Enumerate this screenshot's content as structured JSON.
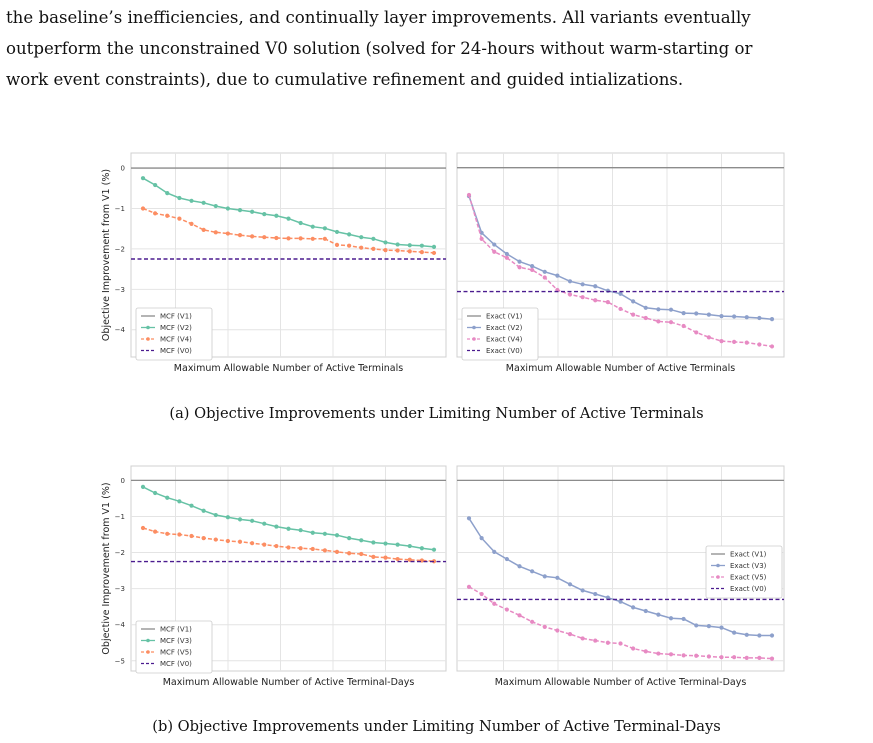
{
  "paragraph": {
    "line1": "the baseline’s inefficiencies, and continually layer improvements.  All variants eventually",
    "line2": "outperform the unconstrained V0 solution (solved for 24-hours without warm-starting or",
    "line3": "work event constraints), due to cumulative refinement and guided intializations."
  },
  "captions": {
    "a": "(a) Objective Improvements under Limiting Number of Active Terminals",
    "b": "(b) Objective Improvements under Limiting Number of Active Terminal-Days"
  },
  "colors": {
    "v1": "#8c8c8c",
    "mcf_green": "#66c2a5",
    "mcf_orange": "#fc8d62",
    "exact_blue": "#8da0cb",
    "exact_pink": "#e78ac3",
    "v0": "#4b1c8f"
  },
  "chart_data": [
    {
      "id": "a-left",
      "type": "line",
      "xlabel": "Maximum Allowable Number of Active Terminals",
      "ylabel": "Objective Improvement from V1 (%)",
      "ylim": [
        -4.6,
        0.15
      ],
      "yticks": [
        0,
        -1,
        -2,
        -3,
        -4
      ],
      "grid": true,
      "legend": "lower-left",
      "series": [
        {
          "name": "MCF (V1)",
          "style": "solid",
          "color": "#8c8c8c",
          "constant": 0
        },
        {
          "name": "MCF (V2)",
          "style": "solid",
          "marker": true,
          "color": "#66c2a5",
          "values": [
            -0.25,
            -0.42,
            -0.62,
            -0.74,
            -0.81,
            -0.86,
            -0.94,
            -1.0,
            -1.04,
            -1.08,
            -1.14,
            -1.18,
            -1.25,
            -1.36,
            -1.45,
            -1.49,
            -1.58,
            -1.64,
            -1.71,
            -1.75,
            -1.84,
            -1.89,
            -1.91,
            -1.92,
            -1.95
          ]
        },
        {
          "name": "MCF (V4)",
          "style": "dashed",
          "marker": true,
          "color": "#fc8d62",
          "values": [
            -1.0,
            -1.12,
            -1.18,
            -1.25,
            -1.38,
            -1.53,
            -1.59,
            -1.62,
            -1.66,
            -1.69,
            -1.71,
            -1.73,
            -1.74,
            -1.74,
            -1.75,
            -1.75,
            -1.9,
            -1.92,
            -1.97,
            -2.0,
            -2.03,
            -2.04,
            -2.06,
            -2.08,
            -2.1
          ]
        },
        {
          "name": "MCF (V0)",
          "style": "dashed",
          "color": "#4b1c8f",
          "constant": -2.25
        }
      ]
    },
    {
      "id": "a-right",
      "type": "line",
      "xlabel": "Maximum Allowable Number of Active Terminals",
      "ylabel": "",
      "ylim": [
        -4.92,
        0.15
      ],
      "grid": true,
      "legend": "lower-left",
      "series": [
        {
          "name": "Exact (V1)",
          "style": "solid",
          "color": "#8c8c8c",
          "constant": 0
        },
        {
          "name": "Exact (V2)",
          "style": "solid",
          "marker": true,
          "color": "#8da0cb",
          "values": [
            -0.75,
            -1.72,
            -2.03,
            -2.28,
            -2.48,
            -2.6,
            -2.75,
            -2.85,
            -3.0,
            -3.08,
            -3.13,
            -3.25,
            -3.33,
            -3.53,
            -3.7,
            -3.74,
            -3.75,
            -3.84,
            -3.85,
            -3.88,
            -3.92,
            -3.93,
            -3.95,
            -3.97,
            -4.0
          ]
        },
        {
          "name": "Exact (V4)",
          "style": "dashed",
          "marker": true,
          "color": "#e78ac3",
          "values": [
            -0.72,
            -1.88,
            -2.22,
            -2.38,
            -2.63,
            -2.7,
            -2.9,
            -3.23,
            -3.35,
            -3.42,
            -3.5,
            -3.55,
            -3.73,
            -3.88,
            -3.97,
            -4.06,
            -4.08,
            -4.18,
            -4.35,
            -4.48,
            -4.58,
            -4.6,
            -4.62,
            -4.67,
            -4.72
          ]
        },
        {
          "name": "Exact (V0)",
          "style": "dashed",
          "color": "#4b1c8f",
          "constant": -3.27
        }
      ]
    },
    {
      "id": "b-left",
      "type": "line",
      "xlabel": "Maximum Allowable Number of Active Terminal-Days",
      "ylabel": "Objective Improvement from V1 (%)",
      "ylim": [
        -5.2,
        0.15
      ],
      "yticks": [
        0,
        -1,
        -2,
        -3,
        -4,
        -5
      ],
      "grid": true,
      "legend": "lower-left",
      "series": [
        {
          "name": "MCF (V1)",
          "style": "solid",
          "color": "#8c8c8c",
          "constant": 0
        },
        {
          "name": "MCF (V3)",
          "style": "solid",
          "marker": true,
          "color": "#66c2a5",
          "values": [
            -0.18,
            -0.35,
            -0.48,
            -0.58,
            -0.7,
            -0.84,
            -0.96,
            -1.02,
            -1.08,
            -1.12,
            -1.2,
            -1.28,
            -1.34,
            -1.38,
            -1.45,
            -1.48,
            -1.52,
            -1.6,
            -1.66,
            -1.72,
            -1.75,
            -1.78,
            -1.82,
            -1.88,
            -1.92
          ]
        },
        {
          "name": "MCF (V5)",
          "style": "dashed",
          "marker": true,
          "color": "#fc8d62",
          "values": [
            -1.32,
            -1.42,
            -1.48,
            -1.5,
            -1.54,
            -1.6,
            -1.64,
            -1.68,
            -1.7,
            -1.74,
            -1.78,
            -1.82,
            -1.86,
            -1.88,
            -1.9,
            -1.94,
            -1.98,
            -2.02,
            -2.04,
            -2.12,
            -2.14,
            -2.18,
            -2.2,
            -2.22,
            -2.24
          ]
        },
        {
          "name": "MCF (V0)",
          "style": "dashed",
          "color": "#4b1c8f",
          "constant": -2.25
        }
      ]
    },
    {
      "id": "b-right",
      "type": "line",
      "xlabel": "Maximum Allowable Number of Active Terminal-Days",
      "ylabel": "",
      "ylim": [
        -5.2,
        0.15
      ],
      "grid": true,
      "legend": "right",
      "series": [
        {
          "name": "Exact (V1)",
          "style": "solid",
          "color": "#8c8c8c",
          "constant": 0
        },
        {
          "name": "Exact (V3)",
          "style": "solid",
          "marker": true,
          "color": "#8da0cb",
          "values": [
            -1.05,
            -1.6,
            -1.98,
            -2.18,
            -2.38,
            -2.52,
            -2.66,
            -2.7,
            -2.88,
            -3.05,
            -3.15,
            -3.25,
            -3.36,
            -3.52,
            -3.62,
            -3.72,
            -3.82,
            -3.84,
            -4.02,
            -4.04,
            -4.08,
            -4.22,
            -4.28,
            -4.3,
            -4.3
          ]
        },
        {
          "name": "Exact (V5)",
          "style": "dashed",
          "marker": true,
          "color": "#e78ac3",
          "values": [
            -2.95,
            -3.15,
            -3.42,
            -3.58,
            -3.74,
            -3.92,
            -4.06,
            -4.16,
            -4.26,
            -4.38,
            -4.44,
            -4.5,
            -4.52,
            -4.66,
            -4.74,
            -4.8,
            -4.82,
            -4.85,
            -4.86,
            -4.88,
            -4.9,
            -4.9,
            -4.92,
            -4.92,
            -4.94
          ]
        },
        {
          "name": "Exact (V0)",
          "style": "dashed",
          "color": "#4b1c8f",
          "constant": -3.3
        }
      ]
    }
  ]
}
